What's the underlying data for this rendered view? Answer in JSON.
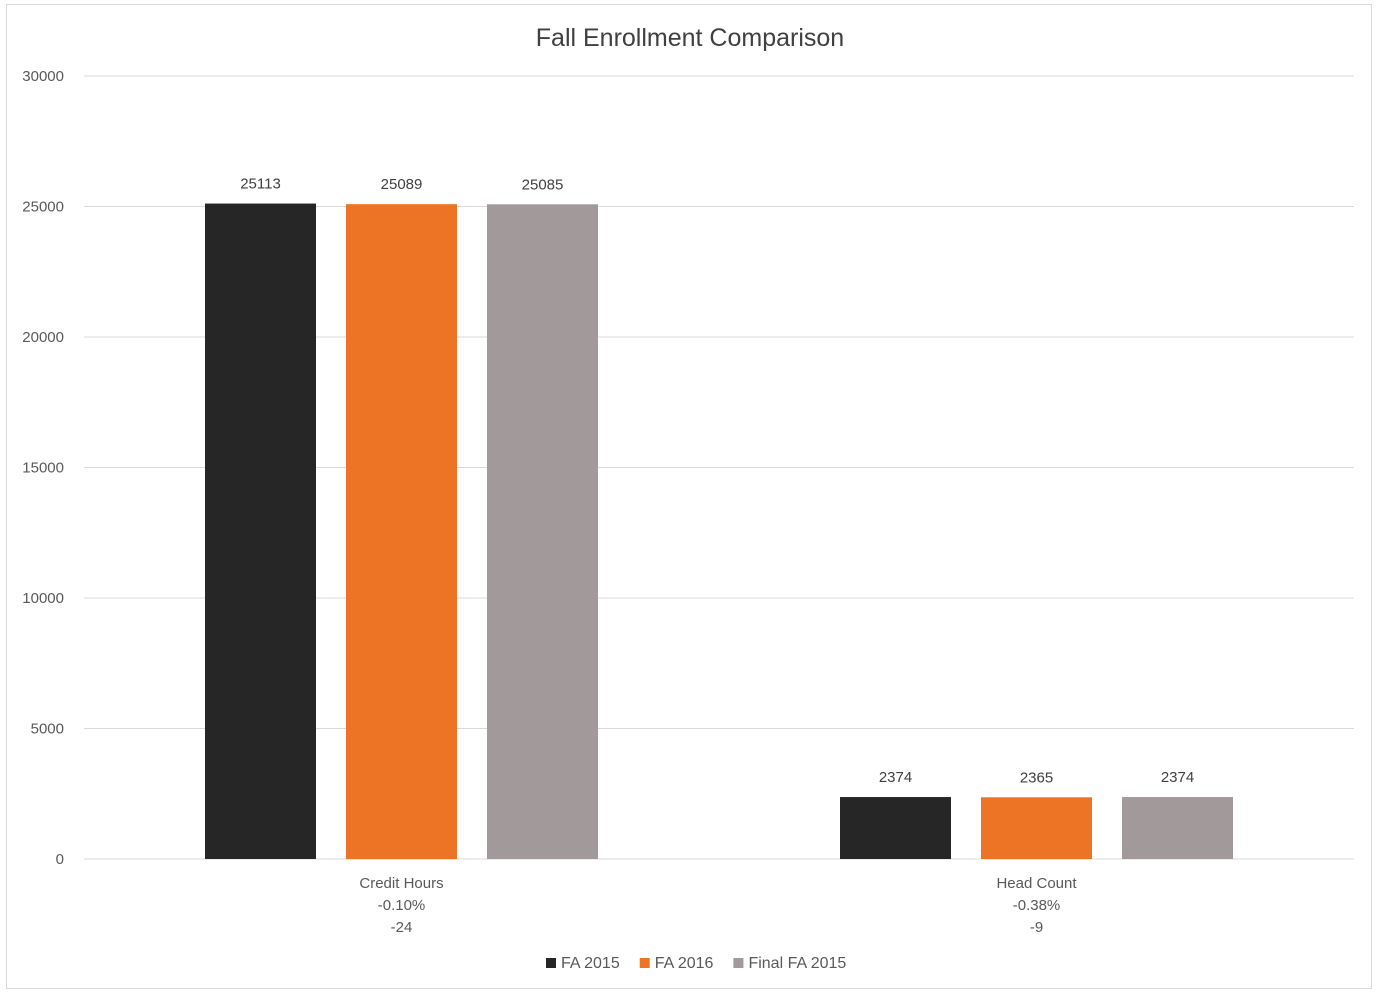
{
  "chart_data": {
    "type": "bar",
    "title": "Fall Enrollment Comparison",
    "xlabel": "",
    "ylabel": "",
    "ylim": [
      0,
      30000
    ],
    "yticks": [
      0,
      5000,
      10000,
      15000,
      20000,
      25000,
      30000
    ],
    "grid": true,
    "legend_position": "bottom",
    "categories": [
      {
        "lines": [
          "Credit Hours",
          "-0.10%",
          "-24"
        ]
      },
      {
        "lines": [
          "Head Count",
          "-0.38%",
          "-9"
        ]
      }
    ],
    "series": [
      {
        "name": "FA 2015",
        "color": "#262626",
        "values": [
          25113,
          2374
        ]
      },
      {
        "name": "FA 2016",
        "color": "#ed7424",
        "values": [
          25089,
          2365
        ]
      },
      {
        "name": "Final FA 2015",
        "color": "#a29a9a",
        "values": [
          25085,
          2374
        ]
      }
    ]
  }
}
